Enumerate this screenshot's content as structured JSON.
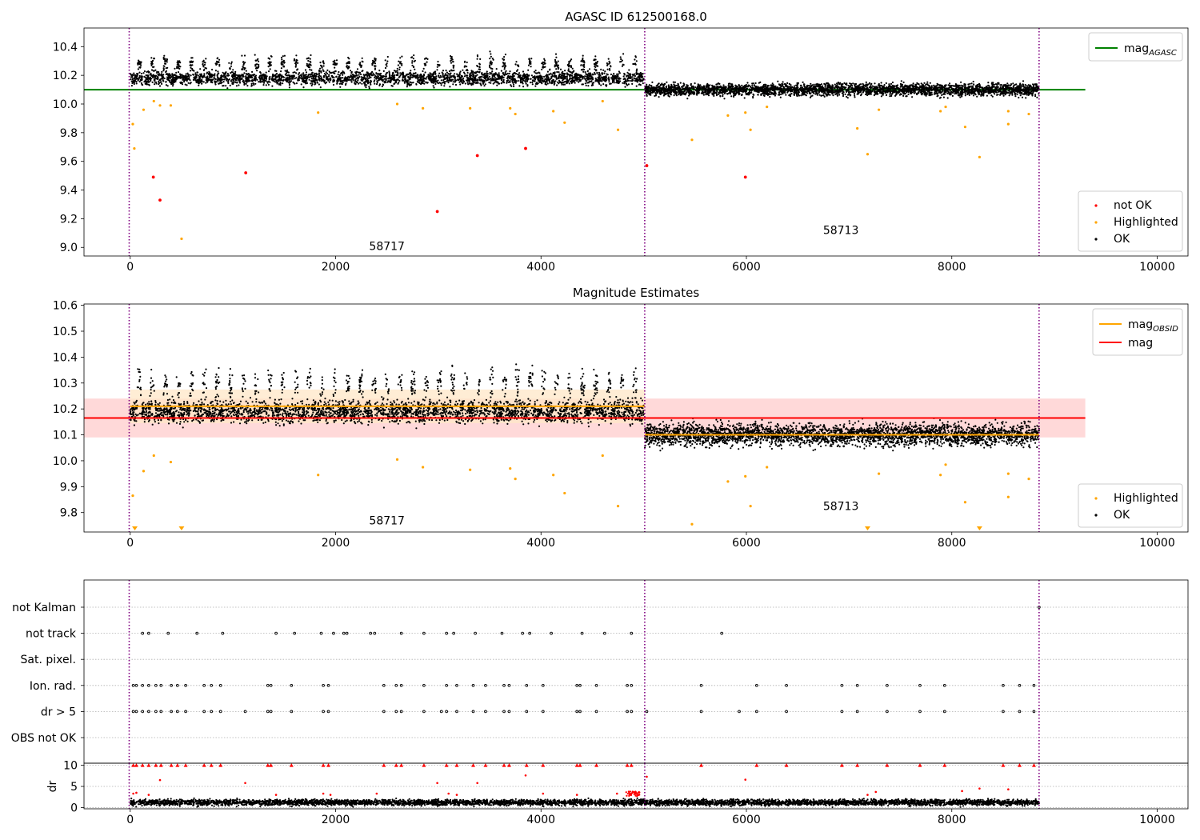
{
  "figure": {
    "background": "#ffffff"
  },
  "colors": {
    "ok": "#000000",
    "highlighted": "#ffa500",
    "not_ok": "#ff0000",
    "mag_agasc": "#008000",
    "mag_obsid": "#ffa500",
    "mag": "#ff0000",
    "obsid_separator": "#800080",
    "band_mag": "#ffcccc",
    "band_obsid": "#ffe7c7"
  },
  "chart_data": [
    {
      "type": "scatter",
      "title": "AGASC ID 612500168.0",
      "xlim": [
        -450,
        10300
      ],
      "ylim": [
        8.94,
        10.53
      ],
      "xticks": [
        0,
        2000,
        4000,
        6000,
        8000,
        10000
      ],
      "yticks": [
        9.0,
        9.2,
        9.4,
        9.6,
        9.8,
        10.0,
        10.2,
        10.4
      ],
      "ytick_decimals": 1,
      "legend_top": {
        "placement": "upper right",
        "entries": [
          {
            "label": "mag",
            "sub": "AGASC",
            "color": "#008000",
            "kind": "line"
          }
        ]
      },
      "legend_bottom": {
        "placement": "lower right",
        "entries": [
          {
            "label": "not OK",
            "color": "#ff0000",
            "kind": "dot"
          },
          {
            "label": "Highlighted",
            "color": "#ffa500",
            "kind": "dot"
          },
          {
            "label": "OK",
            "color": "#000000",
            "kind": "dot"
          }
        ]
      },
      "obsid_boundaries": [
        -10,
        5010,
        8850
      ],
      "obsid_labels": [
        {
          "text": "58717",
          "x": 2500,
          "y": 9.01
        },
        {
          "text": "58713",
          "x": 6920,
          "y": 9.12
        }
      ],
      "hlines": [
        {
          "name": "mag_AGASC",
          "y": 10.1,
          "x": [
            -450,
            9300
          ],
          "color": "#008000"
        }
      ],
      "ok_series": [
        {
          "x_range": [
            0,
            5000
          ],
          "base": 10.18,
          "noise": 0.035,
          "bump_period": 127,
          "bump_amplitude": 0.13,
          "n": 3500
        },
        {
          "x_range": [
            5010,
            8850
          ],
          "base": 10.1,
          "noise": 0.03,
          "n": 3200
        }
      ],
      "highlighted_points": [
        [
          25,
          9.86
        ],
        [
          40,
          9.69
        ],
        [
          130,
          9.96
        ],
        [
          230,
          10.02
        ],
        [
          290,
          9.99
        ],
        [
          395,
          9.99
        ],
        [
          500,
          9.06
        ],
        [
          1830,
          9.94
        ],
        [
          2600,
          10.0
        ],
        [
          2850,
          9.97
        ],
        [
          3310,
          9.97
        ],
        [
          3700,
          9.97
        ],
        [
          3750,
          9.93
        ],
        [
          4120,
          9.95
        ],
        [
          4230,
          9.87
        ],
        [
          4600,
          10.02
        ],
        [
          4750,
          9.82
        ],
        [
          5470,
          9.75
        ],
        [
          5820,
          9.92
        ],
        [
          5990,
          9.94
        ],
        [
          6040,
          9.82
        ],
        [
          6200,
          9.98
        ],
        [
          7080,
          9.83
        ],
        [
          7180,
          9.65
        ],
        [
          7290,
          9.96
        ],
        [
          7890,
          9.95
        ],
        [
          7940,
          9.98
        ],
        [
          8130,
          9.84
        ],
        [
          8270,
          9.63
        ],
        [
          8550,
          9.95
        ],
        [
          8550,
          9.86
        ],
        [
          8750,
          9.93
        ]
      ],
      "not_ok_points": [
        [
          225,
          9.49
        ],
        [
          290,
          9.33
        ],
        [
          1125,
          9.52
        ],
        [
          2990,
          9.25
        ],
        [
          3380,
          9.64
        ],
        [
          3850,
          9.69
        ],
        [
          5030,
          9.57
        ],
        [
          5990,
          9.49
        ]
      ]
    },
    {
      "type": "scatter",
      "title": "Magnitude Estimates",
      "xlim": [
        -450,
        10300
      ],
      "ylim": [
        9.725,
        10.605
      ],
      "xticks": [
        0,
        2000,
        4000,
        6000,
        8000,
        10000
      ],
      "yticks": [
        9.8,
        9.9,
        10.0,
        10.1,
        10.2,
        10.3,
        10.4,
        10.5,
        10.6
      ],
      "ytick_decimals": 1,
      "legend_top": {
        "placement": "upper right",
        "entries": [
          {
            "label": "mag",
            "sub": "OBSID",
            "color": "#ffa500",
            "kind": "line"
          },
          {
            "label": "mag",
            "sub": "",
            "color": "#ff0000",
            "kind": "line"
          }
        ]
      },
      "legend_bottom": {
        "placement": "lower right",
        "entries": [
          {
            "label": "Highlighted",
            "color": "#ffa500",
            "kind": "dot"
          },
          {
            "label": "OK",
            "color": "#000000",
            "kind": "dot"
          }
        ]
      },
      "obsid_boundaries": [
        -10,
        5010,
        8850
      ],
      "obsid_labels": [
        {
          "text": "58717",
          "x": 2500,
          "y": 9.77
        },
        {
          "text": "58713",
          "x": 6920,
          "y": 9.825
        }
      ],
      "bands": [
        {
          "name": "mag band",
          "x": [
            -450,
            9300
          ],
          "y": [
            10.09,
            10.24
          ],
          "color": "#ffcccc"
        },
        {
          "name": "mag_OBSID band 58717",
          "x": [
            0,
            5010
          ],
          "y": [
            10.145,
            10.275
          ],
          "color": "#ffe7c7"
        },
        {
          "name": "mag_OBSID band 58713",
          "x": [
            5010,
            8850
          ],
          "y": [
            10.09,
            10.11
          ],
          "color": "#ffe7c7"
        }
      ],
      "hlines": [
        {
          "name": "mag",
          "y": 10.165,
          "x": [
            -450,
            9300
          ],
          "color": "#ff0000"
        },
        {
          "name": "mag_OBSID 58717",
          "y": 10.21,
          "x": [
            0,
            5010
          ],
          "color": "#ffa500"
        },
        {
          "name": "mag_OBSID 58713",
          "y": 10.1,
          "x": [
            5010,
            8850
          ],
          "color": "#ffa500"
        }
      ],
      "ok_series": [
        {
          "x_range": [
            0,
            5000
          ],
          "base": 10.19,
          "noise": 0.03,
          "bump_period": 127,
          "bump_amplitude": 0.14,
          "n": 3500
        },
        {
          "x_range": [
            5010,
            8850
          ],
          "base": 10.1,
          "noise": 0.03,
          "n": 3200
        }
      ],
      "highlighted_points": [
        [
          25,
          9.865
        ],
        [
          130,
          9.96
        ],
        [
          230,
          10.02
        ],
        [
          395,
          9.995
        ],
        [
          1830,
          9.945
        ],
        [
          2600,
          10.005
        ],
        [
          2850,
          9.975
        ],
        [
          3310,
          9.965
        ],
        [
          3700,
          9.97
        ],
        [
          3750,
          9.93
        ],
        [
          4120,
          9.945
        ],
        [
          4230,
          9.875
        ],
        [
          4600,
          10.02
        ],
        [
          4750,
          9.825
        ],
        [
          5470,
          9.755
        ],
        [
          5820,
          9.92
        ],
        [
          5990,
          9.94
        ],
        [
          6040,
          9.825
        ],
        [
          6200,
          9.975
        ],
        [
          7290,
          9.95
        ],
        [
          7890,
          9.945
        ],
        [
          7940,
          9.985
        ],
        [
          8130,
          9.84
        ],
        [
          8550,
          9.95
        ],
        [
          8550,
          9.86
        ],
        [
          8750,
          9.93
        ]
      ],
      "clipped_low_markers": [
        45,
        500,
        7180,
        8270
      ]
    },
    {
      "type": "scatter",
      "title": "",
      "xlim": [
        -450,
        10300
      ],
      "ylim": [
        -0.5,
        9.5
      ],
      "categories": [
        "not Kalman",
        "not track",
        "Sat. pixel.",
        "Ion. rad.",
        "dr > 5",
        "OBS not OK"
      ],
      "obsid_boundaries": [
        -10,
        5010,
        8850
      ],
      "flag_events": {
        "not Kalman": [
          8850
        ],
        "not track": [
          120,
          180,
          370,
          650,
          900,
          1420,
          1600,
          1860,
          1980,
          2080,
          2110,
          2340,
          2380,
          2640,
          2860,
          3080,
          3150,
          3360,
          3620,
          3820,
          3890,
          4100,
          4400,
          4620,
          4880,
          5760
        ],
        "Sat. pixel.": [],
        "Ion. rad.": [
          30,
          60,
          120,
          180,
          250,
          300,
          400,
          460,
          540,
          720,
          790,
          880,
          1340,
          1370,
          1570,
          1880,
          1930,
          2470,
          2590,
          2640,
          2860,
          3080,
          3180,
          3340,
          3460,
          3640,
          3690,
          3860,
          4020,
          4350,
          4380,
          4540,
          4840,
          4880,
          5560,
          6100,
          6390,
          6930,
          7080,
          7370,
          7690,
          7930,
          8500,
          8660,
          8800
        ],
        "dr > 5": [
          30,
          60,
          120,
          180,
          250,
          300,
          400,
          460,
          540,
          720,
          790,
          880,
          1120,
          1340,
          1370,
          1570,
          1880,
          1930,
          2470,
          2590,
          2640,
          2860,
          3030,
          3080,
          3180,
          3340,
          3460,
          3640,
          3690,
          3860,
          4020,
          4350,
          4380,
          4540,
          4840,
          4880,
          5030,
          5560,
          5930,
          6100,
          6390,
          6930,
          7080,
          7370,
          7690,
          7930,
          8500,
          8660,
          8800
        ],
        "OBS not OK": []
      }
    },
    {
      "type": "scatter",
      "title": "",
      "ylabel": "dr",
      "xlim": [
        -450,
        10300
      ],
      "ylim": [
        -0.3,
        10.5
      ],
      "xticks": [
        0,
        2000,
        4000,
        6000,
        8000,
        10000
      ],
      "yticks": [
        0,
        5,
        10
      ],
      "ytick_decimals": 0,
      "obsid_boundaries": [
        -10,
        5010,
        8850
      ],
      "ok_series": [
        {
          "x_range": [
            0,
            8850
          ],
          "base": 1.2,
          "noise": 0.5,
          "n": 5200
        }
      ],
      "red_top_x": [
        30,
        60,
        120,
        180,
        250,
        300,
        400,
        460,
        540,
        720,
        790,
        880,
        1340,
        1370,
        1570,
        1880,
        1930,
        2470,
        2590,
        2640,
        2860,
        3080,
        3180,
        3340,
        3460,
        3640,
        3690,
        3860,
        4020,
        4350,
        4380,
        4540,
        4840,
        4880,
        5560,
        6100,
        6390,
        6930,
        7080,
        7370,
        7690,
        7930,
        8500,
        8660,
        8800
      ],
      "red_points": [
        [
          30,
          3.3
        ],
        [
          60,
          3.5
        ],
        [
          180,
          3.0
        ],
        [
          290,
          6.5
        ],
        [
          1120,
          5.8
        ],
        [
          1420,
          3.0
        ],
        [
          1880,
          3.3
        ],
        [
          1950,
          3.0
        ],
        [
          2400,
          3.3
        ],
        [
          2990,
          5.8
        ],
        [
          3100,
          3.3
        ],
        [
          3180,
          3.0
        ],
        [
          3380,
          5.8
        ],
        [
          3850,
          7.6
        ],
        [
          4020,
          3.3
        ],
        [
          4350,
          3.0
        ],
        [
          4740,
          3.3
        ],
        [
          4880,
          3.3
        ],
        [
          5030,
          7.3
        ],
        [
          5990,
          6.6
        ],
        [
          7180,
          3.0
        ],
        [
          7260,
          3.7
        ],
        [
          8100,
          3.9
        ],
        [
          8270,
          4.5
        ],
        [
          8550,
          4.3
        ]
      ],
      "red_dense_cluster": {
        "x_range": [
          4820,
          4960
        ],
        "y_range": [
          2.6,
          3.8
        ],
        "n": 40
      }
    }
  ]
}
